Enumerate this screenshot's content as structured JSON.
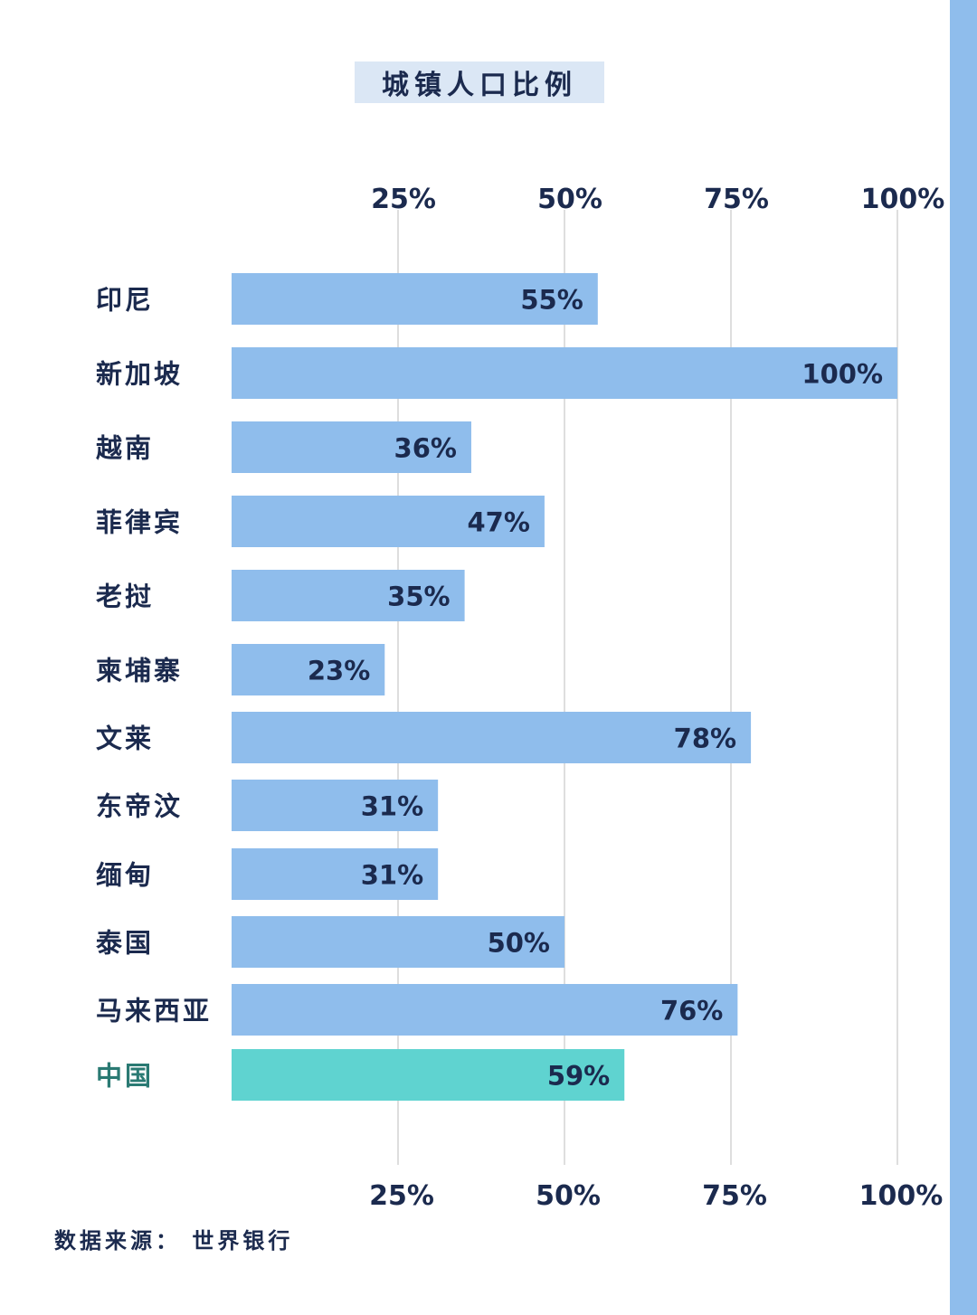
{
  "colors": {
    "bar": "#8fbdec",
    "highlight_bar": "#5fd3d0",
    "label_text": "#1b2a4e",
    "highlight_label": "#2a7a73",
    "grid": "#d3d3d3",
    "title_bg": "#dbe7f5",
    "side_strip": "#8fbdec"
  },
  "source_label": "数据来源：",
  "source_value": "世界银行",
  "chart_data": {
    "type": "bar",
    "orientation": "horizontal",
    "title": "城镇人口比例",
    "xlim": [
      0,
      100
    ],
    "xticks": [
      25,
      50,
      75,
      100
    ],
    "xtick_labels": [
      "25%",
      "50%",
      "75%",
      "100%"
    ],
    "grid": true,
    "axis_labels_position": "top-and-bottom",
    "highlight_category": "中国",
    "categories": [
      "印尼",
      "新加坡",
      "越南",
      "菲律宾",
      "老挝",
      "柬埔寨",
      "文莱",
      "东帝汶",
      "缅甸",
      "泰国",
      "马来西亚",
      "中国"
    ],
    "values": [
      55,
      100,
      36,
      47,
      35,
      23,
      78,
      31,
      31,
      50,
      76,
      59
    ],
    "value_labels": [
      "55%",
      "100%",
      "36%",
      "47%",
      "35%",
      "23%",
      "78%",
      "31%",
      "31%",
      "50%",
      "76%",
      "59%"
    ]
  }
}
